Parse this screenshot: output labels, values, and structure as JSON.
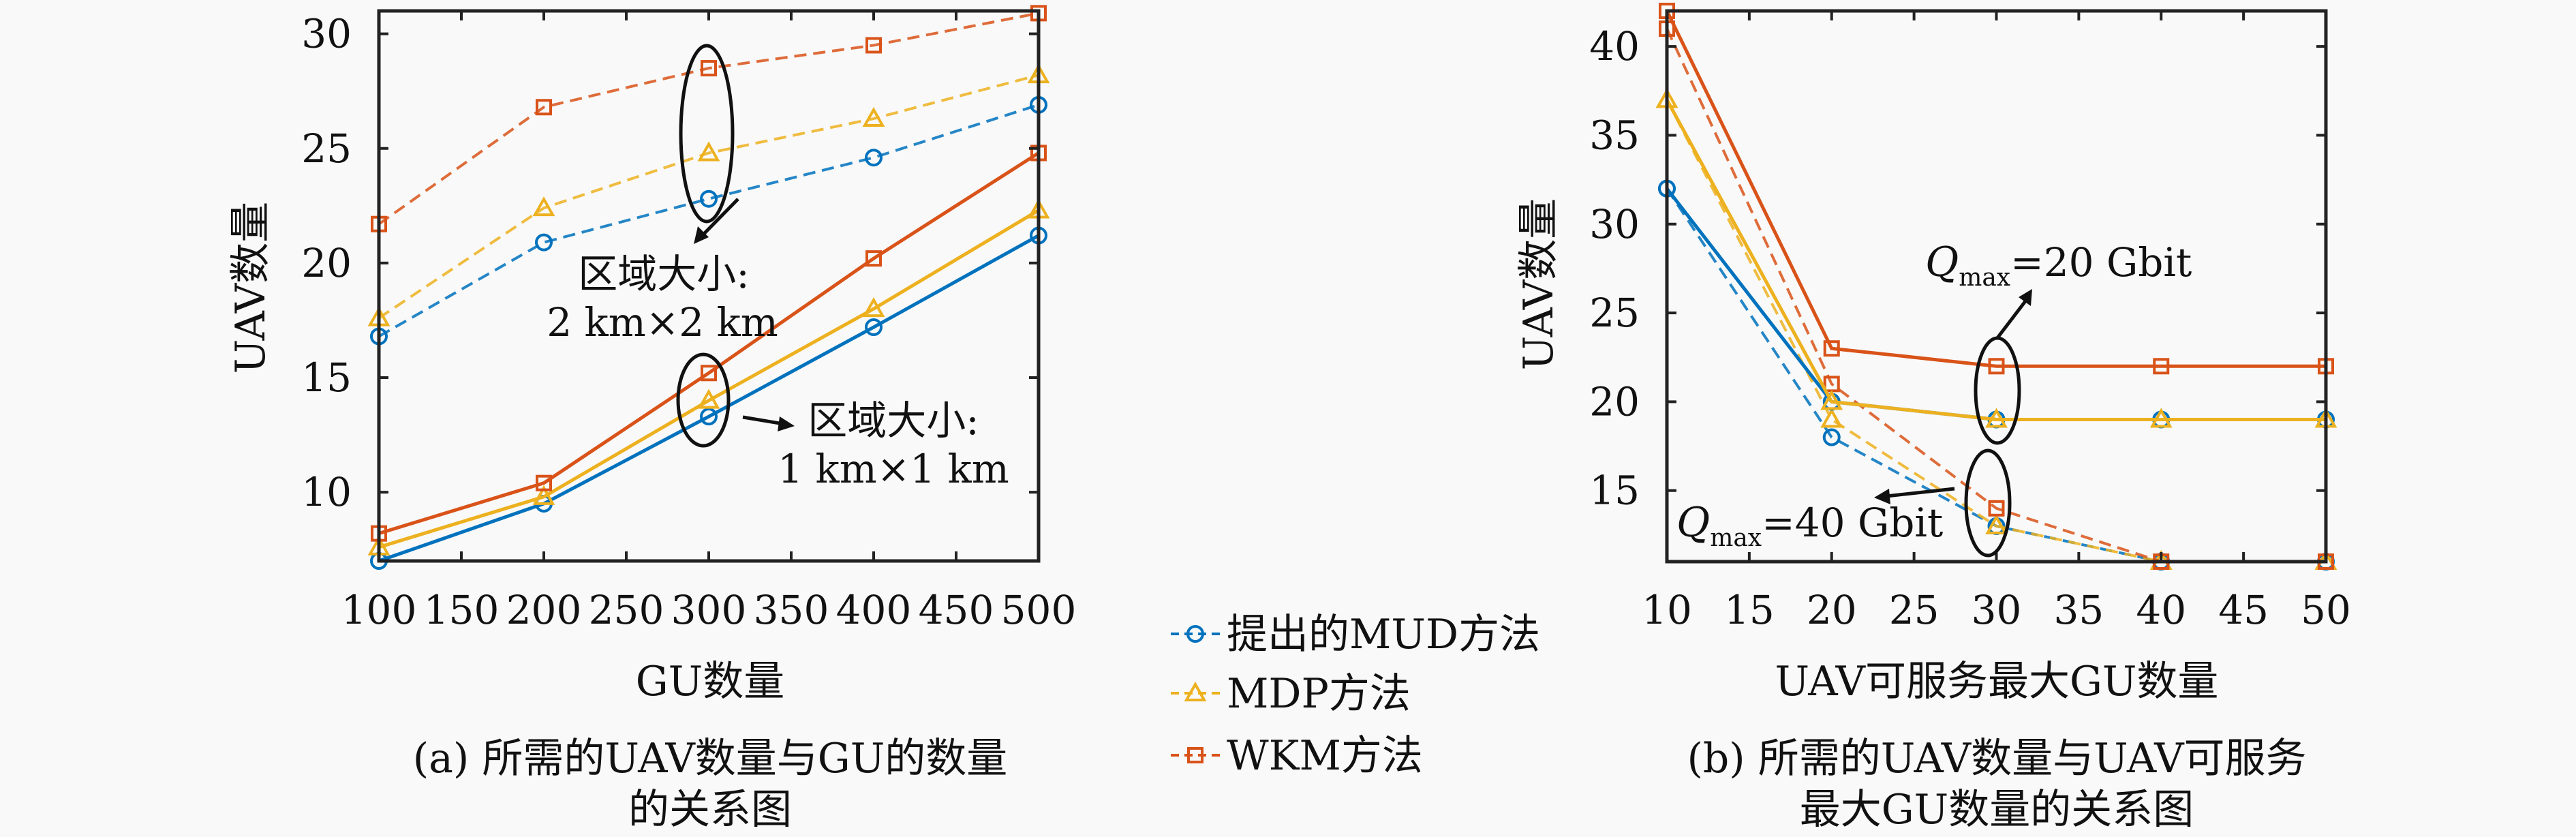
{
  "colors": {
    "mud": "#0072BD",
    "mdp": "#EDB120",
    "wkm": "#D95319",
    "axis": "#222222",
    "background": "#f9f9f9"
  },
  "legend": {
    "items": [
      {
        "label": "提出的MUD方法",
        "marker": "circle",
        "series_key": "mud"
      },
      {
        "label": "MDP方法",
        "marker": "triangle",
        "series_key": "mdp"
      },
      {
        "label": "WKM方法",
        "marker": "square",
        "series_key": "wkm"
      }
    ],
    "placement": "between-charts-bottom"
  },
  "chart_data": [
    {
      "type": "line",
      "caption_line1": "(a) 所需的UAV数量与GU的数量",
      "caption_line2": "的关系图",
      "xlabel": "GU数量",
      "ylabel": "UAV数量",
      "x": [
        100,
        200,
        300,
        400,
        500
      ],
      "xlim": [
        100,
        500
      ],
      "ylim": [
        7,
        31
      ],
      "xticks": [
        100,
        150,
        200,
        250,
        300,
        350,
        400,
        450,
        500
      ],
      "yticks": [
        10,
        15,
        20,
        25,
        30
      ],
      "xtick_labels": [
        "100",
        "150",
        "200",
        "250",
        "300",
        "350",
        "400",
        "450",
        "500"
      ],
      "ytick_labels": [
        "10",
        "15",
        "20",
        "25",
        "30"
      ],
      "grid": false,
      "series": [
        {
          "name": "提出的MUD方法",
          "group": "2 km×2 km",
          "style": "dashed",
          "marker": "circle",
          "color_key": "mud",
          "values": [
            16.8,
            20.9,
            22.8,
            24.6,
            26.9
          ]
        },
        {
          "name": "MDP方法",
          "group": "2 km×2 km",
          "style": "dashed",
          "marker": "triangle",
          "color_key": "mdp",
          "values": [
            17.6,
            22.4,
            24.8,
            26.3,
            28.2
          ]
        },
        {
          "name": "WKM方法",
          "group": "2 km×2 km",
          "style": "dashed",
          "marker": "square",
          "color_key": "wkm",
          "values": [
            21.7,
            26.8,
            28.5,
            29.5,
            30.9
          ]
        },
        {
          "name": "提出的MUD方法",
          "group": "1 km×1 km",
          "style": "solid",
          "marker": "circle",
          "color_key": "mud",
          "values": [
            7.0,
            9.5,
            13.3,
            17.2,
            21.2
          ]
        },
        {
          "name": "MDP方法",
          "group": "1 km×1 km",
          "style": "solid",
          "marker": "triangle",
          "color_key": "mdp",
          "values": [
            7.6,
            9.8,
            14.0,
            18.0,
            22.3
          ]
        },
        {
          "name": "WKM方法",
          "group": "1 km×1 km",
          "style": "solid",
          "marker": "square",
          "color_key": "wkm",
          "values": [
            8.2,
            10.4,
            15.2,
            20.2,
            24.8
          ]
        }
      ],
      "annotations": [
        {
          "line1": "区域大小:",
          "line2": "2 km×2 km"
        },
        {
          "line1": "区域大小:",
          "line2": "1 km×1 km"
        }
      ]
    },
    {
      "type": "line",
      "caption_line1": "(b) 所需的UAV数量与UAV可服务",
      "caption_line2": "最大GU数量的关系图",
      "xlabel": "UAV可服务最大GU数量",
      "ylabel": "UAV数量",
      "x": [
        10,
        20,
        30,
        40,
        50
      ],
      "xlim": [
        10,
        50
      ],
      "ylim": [
        11,
        42
      ],
      "xticks": [
        10,
        15,
        20,
        25,
        30,
        35,
        40,
        45,
        50
      ],
      "yticks": [
        15,
        20,
        25,
        30,
        35,
        40
      ],
      "xtick_labels": [
        "10",
        "15",
        "20",
        "25",
        "30",
        "35",
        "40",
        "45",
        "50"
      ],
      "ytick_labels": [
        "15",
        "20",
        "25",
        "30",
        "35",
        "40"
      ],
      "grid": false,
      "series": [
        {
          "name": "提出的MUD方法",
          "group": "Qmax=40 Gbit",
          "style": "dashed",
          "marker": "circle",
          "color_key": "mud",
          "values": [
            32,
            18,
            13,
            11,
            11
          ]
        },
        {
          "name": "MDP方法",
          "group": "Qmax=40 Gbit",
          "style": "dashed",
          "marker": "triangle",
          "color_key": "mdp",
          "values": [
            37,
            19,
            13,
            11,
            11
          ]
        },
        {
          "name": "WKM方法",
          "group": "Qmax=40 Gbit",
          "style": "dashed",
          "marker": "square",
          "color_key": "wkm",
          "values": [
            41,
            21,
            14,
            11,
            11
          ]
        },
        {
          "name": "提出的MUD方法",
          "group": "Qmax=20 Gbit",
          "style": "solid",
          "marker": "circle",
          "color_key": "mud",
          "values": [
            32,
            20,
            19,
            19,
            19
          ]
        },
        {
          "name": "MDP方法",
          "group": "Qmax=20 Gbit",
          "style": "solid",
          "marker": "triangle",
          "color_key": "mdp",
          "values": [
            37,
            20,
            19,
            19,
            19
          ]
        },
        {
          "name": "WKM方法",
          "group": "Qmax=20 Gbit",
          "style": "solid",
          "marker": "square",
          "color_key": "wkm",
          "values": [
            42,
            23,
            22,
            22,
            22
          ]
        }
      ],
      "annotations": [
        {
          "q": "Q",
          "sub": "max",
          "rest": "=20 Gbit"
        },
        {
          "q": "Q",
          "sub": "max",
          "rest": "=40 Gbit"
        }
      ]
    }
  ]
}
